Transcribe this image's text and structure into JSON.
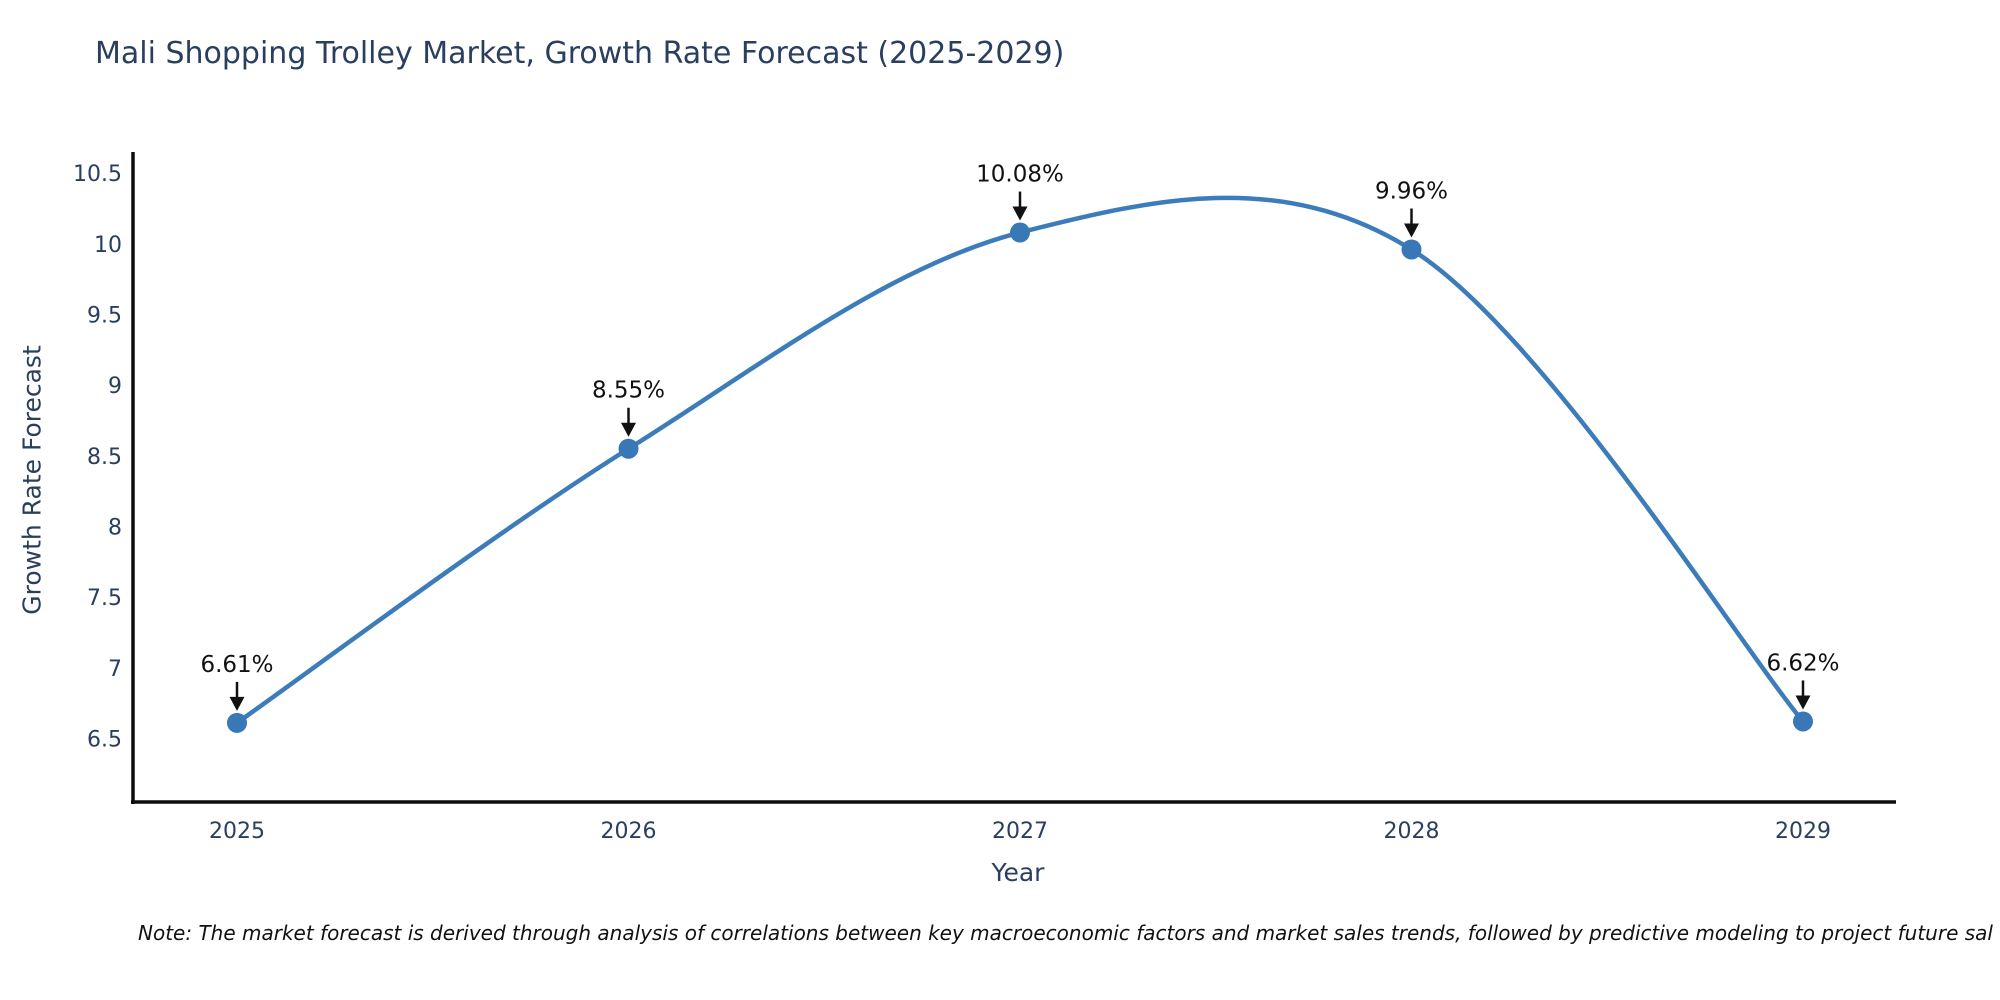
{
  "title": "Mali Shopping Trolley Market, Growth Rate Forecast (2025-2029)",
  "note": "Note: The market forecast is derived through analysis of correlations between key macroeconomic factors and market sales trends, followed by predictive modeling to project future sal",
  "chart_data": {
    "type": "line",
    "title": "Mali Shopping Trolley Market, Growth Rate Forecast (2025-2029)",
    "xlabel": "Year",
    "ylabel": "Growth Rate Forecast",
    "categories": [
      "2025",
      "2026",
      "2027",
      "2028",
      "2029"
    ],
    "values": [
      6.61,
      8.55,
      10.08,
      9.96,
      6.62
    ],
    "point_labels": [
      "6.61%",
      "8.55%",
      "10.08%",
      "9.96%",
      "6.62%"
    ],
    "ytick_labels": [
      "6.5",
      "7",
      "7.5",
      "8",
      "8.5",
      "9",
      "9.5",
      "10",
      "10.5"
    ],
    "ytick_values": [
      6.5,
      7,
      7.5,
      8,
      8.5,
      9,
      9.5,
      10,
      10.5
    ],
    "ylim": [
      6.05,
      10.65
    ],
    "line_shape": "spline",
    "grid": false,
    "legend_position": "none",
    "colors": {
      "line": "#3c7cba",
      "marker": "#3878b6",
      "axis": "#0d0d0d",
      "tick_text": "#2a3f5f",
      "annotation": "#111111"
    }
  }
}
